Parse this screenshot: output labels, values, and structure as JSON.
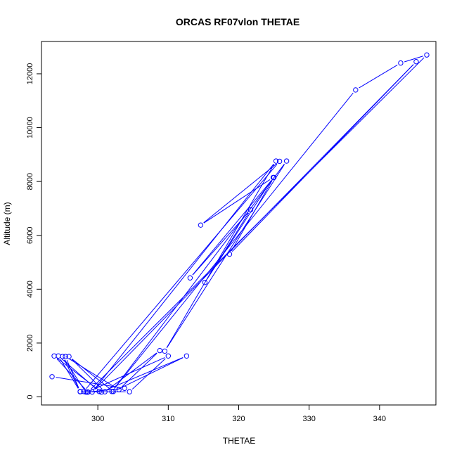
{
  "chart_data": {
    "type": "line",
    "title": "ORCAS RF07vlon THETAE",
    "xlabel": "THETAE",
    "ylabel": "Altitude (m)",
    "xlim": [
      292,
      348
    ],
    "ylim": [
      -300,
      13200
    ],
    "xticks": [
      300,
      310,
      320,
      330,
      340
    ],
    "yticks": [
      0,
      2000,
      4000,
      6000,
      8000,
      10000,
      12000
    ],
    "grid": false,
    "marker": "open-circle",
    "color": "#0000ff",
    "series": [
      {
        "points": [
          [
            293.5,
            750
          ],
          [
            303.8,
            320
          ],
          [
            298.5,
            180
          ],
          [
            310.0,
            1520
          ],
          [
            304.5,
            190
          ],
          [
            297.5,
            190
          ],
          [
            294.4,
            1520
          ],
          [
            300.2,
            200
          ],
          [
            298.3,
            180
          ],
          [
            295.0,
            1500
          ],
          [
            297.5,
            200
          ],
          [
            295.4,
            1500
          ],
          [
            303.0,
            270
          ],
          [
            308.8,
            1720
          ],
          [
            301.0,
            190
          ],
          [
            295.9,
            1500
          ],
          [
            302.2,
            200
          ],
          [
            312.6,
            1520
          ],
          [
            300.5,
            180
          ],
          [
            293.8,
            1520
          ],
          [
            298.6,
            180
          ],
          [
            346.7,
            12700
          ],
          [
            343.0,
            12400
          ],
          [
            336.6,
            11400
          ],
          [
            302.0,
            200
          ],
          [
            326.8,
            8760
          ],
          [
            309.5,
            1700
          ],
          [
            325.3,
            8760
          ],
          [
            299.2,
            180
          ],
          [
            345.2,
            12450
          ],
          [
            318.7,
            5300
          ],
          [
            325.0,
            8150
          ],
          [
            313.1,
            4420
          ],
          [
            321.7,
            6950
          ],
          [
            315.2,
            4250
          ],
          [
            324.9,
            8150
          ],
          [
            314.6,
            6380
          ],
          [
            325.8,
            8750
          ],
          [
            298.0,
            200
          ]
        ]
      }
    ]
  }
}
